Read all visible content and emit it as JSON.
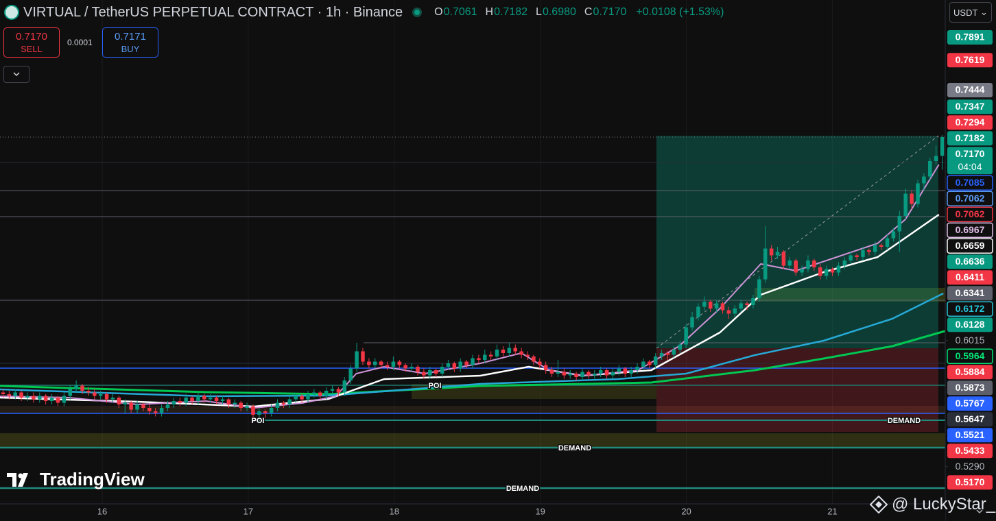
{
  "header": {
    "title": "VIRTUAL / TetherUS PERPETUAL CONTRACT · 1h · Binance",
    "ohlc_letters": [
      "O",
      "H",
      "L",
      "C"
    ],
    "ohlc_values": [
      "0.7061",
      "0.7182",
      "0.6980",
      "0.7170"
    ],
    "change": "+0.0108 (+1.53%)",
    "currency": "USDT"
  },
  "trade": {
    "sell_price": "0.7170",
    "sell": "SELL",
    "spread": "0.0001",
    "buy_price": "0.7171",
    "buy": "BUY"
  },
  "chart_data": {
    "type": "candlestick",
    "up_color": "#089981",
    "down_color": "#f23645",
    "xlim": [
      15.3,
      21.773
    ],
    "xticks": [
      16,
      17,
      18,
      19,
      20,
      21
    ],
    "ylim": [
      0.503,
      0.797
    ],
    "candles": [
      [
        0.568,
        0.57,
        0.565,
        0.567
      ],
      [
        0.567,
        0.569,
        0.564,
        0.566
      ],
      [
        0.566,
        0.57,
        0.564,
        0.568
      ],
      [
        0.568,
        0.569,
        0.563,
        0.565
      ],
      [
        0.565,
        0.568,
        0.563,
        0.566
      ],
      [
        0.566,
        0.568,
        0.562,
        0.564
      ],
      [
        0.564,
        0.568,
        0.562,
        0.566
      ],
      [
        0.566,
        0.567,
        0.561,
        0.563
      ],
      [
        0.563,
        0.567,
        0.561,
        0.565
      ],
      [
        0.565,
        0.566,
        0.56,
        0.562
      ],
      [
        0.562,
        0.568,
        0.56,
        0.566
      ],
      [
        0.566,
        0.572,
        0.564,
        0.57
      ],
      [
        0.57,
        0.575,
        0.568,
        0.572
      ],
      [
        0.572,
        0.573,
        0.567,
        0.569
      ],
      [
        0.569,
        0.571,
        0.566,
        0.568
      ],
      [
        0.568,
        0.57,
        0.564,
        0.566
      ],
      [
        0.566,
        0.569,
        0.564,
        0.567
      ],
      [
        0.567,
        0.568,
        0.562,
        0.564
      ],
      [
        0.564,
        0.567,
        0.562,
        0.565
      ],
      [
        0.565,
        0.566,
        0.559,
        0.561
      ],
      [
        0.561,
        0.564,
        0.556,
        0.562
      ],
      [
        0.562,
        0.563,
        0.556,
        0.558
      ],
      [
        0.558,
        0.563,
        0.556,
        0.561
      ],
      [
        0.561,
        0.562,
        0.557,
        0.559
      ],
      [
        0.559,
        0.561,
        0.555,
        0.557
      ],
      [
        0.557,
        0.559,
        0.554,
        0.556
      ],
      [
        0.556,
        0.561,
        0.554,
        0.559
      ],
      [
        0.559,
        0.563,
        0.557,
        0.561
      ],
      [
        0.561,
        0.565,
        0.559,
        0.563
      ],
      [
        0.563,
        0.565,
        0.56,
        0.562
      ],
      [
        0.562,
        0.567,
        0.56,
        0.565
      ],
      [
        0.565,
        0.566,
        0.561,
        0.563
      ],
      [
        0.563,
        0.568,
        0.561,
        0.566
      ],
      [
        0.566,
        0.567,
        0.562,
        0.564
      ],
      [
        0.564,
        0.567,
        0.562,
        0.565
      ],
      [
        0.565,
        0.566,
        0.561,
        0.563
      ],
      [
        0.563,
        0.566,
        0.561,
        0.564
      ],
      [
        0.564,
        0.565,
        0.559,
        0.561
      ],
      [
        0.561,
        0.564,
        0.559,
        0.562
      ],
      [
        0.562,
        0.563,
        0.557,
        0.559
      ],
      [
        0.559,
        0.562,
        0.557,
        0.56
      ],
      [
        0.56,
        0.561,
        0.552,
        0.555
      ],
      [
        0.555,
        0.559,
        0.553,
        0.557
      ],
      [
        0.557,
        0.558,
        0.553,
        0.556
      ],
      [
        0.556,
        0.561,
        0.554,
        0.559
      ],
      [
        0.559,
        0.564,
        0.557,
        0.562
      ],
      [
        0.562,
        0.563,
        0.559,
        0.561
      ],
      [
        0.561,
        0.566,
        0.559,
        0.564
      ],
      [
        0.564,
        0.568,
        0.562,
        0.566
      ],
      [
        0.566,
        0.567,
        0.562,
        0.564
      ],
      [
        0.564,
        0.569,
        0.562,
        0.567
      ],
      [
        0.567,
        0.57,
        0.565,
        0.568
      ],
      [
        0.568,
        0.569,
        0.564,
        0.566
      ],
      [
        0.566,
        0.571,
        0.564,
        0.569
      ],
      [
        0.569,
        0.572,
        0.567,
        0.57
      ],
      [
        0.57,
        0.571,
        0.566,
        0.568
      ],
      [
        0.568,
        0.577,
        0.566,
        0.575
      ],
      [
        0.575,
        0.584,
        0.573,
        0.582
      ],
      [
        0.582,
        0.597,
        0.58,
        0.592
      ],
      [
        0.592,
        0.594,
        0.584,
        0.586
      ],
      [
        0.586,
        0.588,
        0.582,
        0.584
      ],
      [
        0.584,
        0.588,
        0.582,
        0.586
      ],
      [
        0.586,
        0.587,
        0.582,
        0.584
      ],
      [
        0.584,
        0.586,
        0.581,
        0.583
      ],
      [
        0.583,
        0.589,
        0.581,
        0.586
      ],
      [
        0.586,
        0.587,
        0.582,
        0.584
      ],
      [
        0.584,
        0.585,
        0.58,
        0.582
      ],
      [
        0.582,
        0.585,
        0.58,
        0.583
      ],
      [
        0.583,
        0.584,
        0.578,
        0.58
      ],
      [
        0.58,
        0.582,
        0.576,
        0.578
      ],
      [
        0.578,
        0.583,
        0.576,
        0.581
      ],
      [
        0.581,
        0.582,
        0.577,
        0.579
      ],
      [
        0.579,
        0.585,
        0.577,
        0.583
      ],
      [
        0.583,
        0.587,
        0.581,
        0.585
      ],
      [
        0.585,
        0.586,
        0.58,
        0.582
      ],
      [
        0.582,
        0.588,
        0.58,
        0.586
      ],
      [
        0.586,
        0.587,
        0.582,
        0.584
      ],
      [
        0.584,
        0.59,
        0.582,
        0.588
      ],
      [
        0.588,
        0.59,
        0.585,
        0.587
      ],
      [
        0.587,
        0.593,
        0.585,
        0.59
      ],
      [
        0.59,
        0.592,
        0.587,
        0.589
      ],
      [
        0.589,
        0.596,
        0.587,
        0.593
      ],
      [
        0.593,
        0.595,
        0.589,
        0.591
      ],
      [
        0.591,
        0.597,
        0.589,
        0.594
      ],
      [
        0.594,
        0.596,
        0.59,
        0.592
      ],
      [
        0.592,
        0.594,
        0.588,
        0.59
      ],
      [
        0.59,
        0.592,
        0.587,
        0.589
      ],
      [
        0.589,
        0.59,
        0.584,
        0.586
      ],
      [
        0.586,
        0.588,
        0.582,
        0.584
      ],
      [
        0.584,
        0.586,
        0.579,
        0.581
      ],
      [
        0.581,
        0.583,
        0.577,
        0.579
      ],
      [
        0.579,
        0.587,
        0.577,
        0.58
      ],
      [
        0.58,
        0.582,
        0.576,
        0.578
      ],
      [
        0.578,
        0.581,
        0.576,
        0.579
      ],
      [
        0.579,
        0.58,
        0.575,
        0.577
      ],
      [
        0.577,
        0.582,
        0.575,
        0.58
      ],
      [
        0.58,
        0.581,
        0.576,
        0.578
      ],
      [
        0.578,
        0.581,
        0.576,
        0.579
      ],
      [
        0.579,
        0.583,
        0.577,
        0.581
      ],
      [
        0.581,
        0.582,
        0.576,
        0.578
      ],
      [
        0.578,
        0.582,
        0.576,
        0.58
      ],
      [
        0.58,
        0.584,
        0.578,
        0.582
      ],
      [
        0.582,
        0.583,
        0.577,
        0.579
      ],
      [
        0.579,
        0.583,
        0.577,
        0.581
      ],
      [
        0.581,
        0.585,
        0.579,
        0.583
      ],
      [
        0.583,
        0.588,
        0.581,
        0.586
      ],
      [
        0.586,
        0.587,
        0.582,
        0.584
      ],
      [
        0.584,
        0.591,
        0.582,
        0.589
      ],
      [
        0.589,
        0.593,
        0.587,
        0.591
      ],
      [
        0.591,
        0.592,
        0.587,
        0.59
      ],
      [
        0.59,
        0.595,
        0.588,
        0.593
      ],
      [
        0.593,
        0.598,
        0.591,
        0.596
      ],
      [
        0.596,
        0.608,
        0.594,
        0.606
      ],
      [
        0.606,
        0.615,
        0.604,
        0.612
      ],
      [
        0.612,
        0.62,
        0.61,
        0.618
      ],
      [
        0.618,
        0.624,
        0.616,
        0.621
      ],
      [
        0.621,
        0.622,
        0.615,
        0.617
      ],
      [
        0.617,
        0.622,
        0.615,
        0.62
      ],
      [
        0.62,
        0.621,
        0.614,
        0.616
      ],
      [
        0.616,
        0.618,
        0.611,
        0.614
      ],
      [
        0.614,
        0.619,
        0.612,
        0.617
      ],
      [
        0.617,
        0.622,
        0.615,
        0.62
      ],
      [
        0.62,
        0.621,
        0.616,
        0.619
      ],
      [
        0.619,
        0.625,
        0.617,
        0.623
      ],
      [
        0.623,
        0.636,
        0.621,
        0.634
      ],
      [
        0.634,
        0.665,
        0.632,
        0.652
      ],
      [
        0.652,
        0.654,
        0.645,
        0.648
      ],
      [
        0.648,
        0.653,
        0.646,
        0.65
      ],
      [
        0.65,
        0.651,
        0.64,
        0.642
      ],
      [
        0.642,
        0.647,
        0.64,
        0.645
      ],
      [
        0.645,
        0.646,
        0.636,
        0.638
      ],
      [
        0.638,
        0.642,
        0.636,
        0.64
      ],
      [
        0.64,
        0.648,
        0.638,
        0.645
      ],
      [
        0.645,
        0.646,
        0.639,
        0.641
      ],
      [
        0.641,
        0.643,
        0.634,
        0.636
      ],
      [
        0.636,
        0.642,
        0.634,
        0.64
      ],
      [
        0.64,
        0.641,
        0.636,
        0.638
      ],
      [
        0.638,
        0.644,
        0.636,
        0.642
      ],
      [
        0.642,
        0.647,
        0.64,
        0.645
      ],
      [
        0.645,
        0.65,
        0.643,
        0.648
      ],
      [
        0.648,
        0.649,
        0.645,
        0.647
      ],
      [
        0.647,
        0.653,
        0.645,
        0.651
      ],
      [
        0.651,
        0.652,
        0.648,
        0.65
      ],
      [
        0.65,
        0.656,
        0.648,
        0.654
      ],
      [
        0.654,
        0.655,
        0.651,
        0.653
      ],
      [
        0.653,
        0.66,
        0.651,
        0.658
      ],
      [
        0.658,
        0.664,
        0.656,
        0.662
      ],
      [
        0.662,
        0.674,
        0.65,
        0.671
      ],
      [
        0.671,
        0.687,
        0.669,
        0.684
      ],
      [
        0.684,
        0.686,
        0.675,
        0.678
      ],
      [
        0.678,
        0.692,
        0.676,
        0.69
      ],
      [
        0.69,
        0.696,
        0.686,
        0.694
      ],
      [
        0.694,
        0.705,
        0.692,
        0.703
      ],
      [
        0.703,
        0.712,
        0.701,
        0.706
      ],
      [
        0.7061,
        0.7182,
        0.698,
        0.717
      ]
    ],
    "ma_lines": [
      {
        "color": "#00c853",
        "width": 3,
        "x": [
          15.3,
          16.71,
          17.55,
          18.59,
          19.76,
          20.47,
          20.94,
          21.41,
          21.77
        ],
        "values": [
          0.5718,
          0.5682,
          0.567,
          0.5718,
          0.5738,
          0.581,
          0.5878,
          0.595,
          0.6038
        ]
      },
      {
        "color": "#26a9d6",
        "width": 2.5,
        "x": [
          15.3,
          16.71,
          17.55,
          18.59,
          19.53,
          20.0,
          20.47,
          20.94,
          21.41,
          21.76
        ],
        "values": [
          0.5698,
          0.5658,
          0.5662,
          0.573,
          0.5758,
          0.579,
          0.5898,
          0.5982,
          0.611,
          0.6258
        ]
      },
      {
        "color": "#ffffff",
        "width": 2.5,
        "x": [
          15.3,
          16.24,
          17.04,
          17.55,
          17.93,
          18.59,
          18.92,
          19.29,
          19.76,
          20.23,
          20.51,
          20.94,
          21.31,
          21.73
        ],
        "values": [
          0.565,
          0.5626,
          0.5598,
          0.5642,
          0.5758,
          0.5778,
          0.583,
          0.5778,
          0.581,
          0.603,
          0.625,
          0.6382,
          0.647,
          0.6718
        ]
      },
      {
        "color": "#ce93d8",
        "width": 2,
        "x": [
          15.3,
          15.77,
          16.24,
          16.71,
          17.04,
          17.37,
          17.6,
          17.74,
          17.93,
          18.21,
          18.59,
          18.87,
          19.06,
          19.29,
          19.67,
          19.95,
          20.23,
          20.51,
          20.75,
          21.03,
          21.31,
          21.5,
          21.73
        ],
        "values": [
          0.5658,
          0.565,
          0.561,
          0.563,
          0.559,
          0.5618,
          0.5658,
          0.579,
          0.583,
          0.579,
          0.585,
          0.591,
          0.581,
          0.5778,
          0.581,
          0.595,
          0.617,
          0.643,
          0.639,
          0.647,
          0.655,
          0.669,
          0.701
        ]
      }
    ],
    "price_badges": [
      {
        "value": 0.7891,
        "style": "solid",
        "color": "#089981"
      },
      {
        "value": 0.7619,
        "style": "solid",
        "color": "#f23645"
      },
      {
        "value": 0.7444,
        "style": "solid",
        "color": "#787b86"
      },
      {
        "value": 0.7347,
        "style": "solid",
        "color": "#089981"
      },
      {
        "value": 0.7294,
        "style": "solid",
        "color": "#f23645"
      },
      {
        "value": 0.7182,
        "style": "solid",
        "color": "#089981"
      },
      {
        "value": {
          "value": 0.717,
          "label": "0.7170"
        },
        "style": "solid",
        "color": "#089981",
        "countdown": "04:04"
      },
      {
        "value": 0.7085,
        "style": "outline",
        "color": "#2962ff"
      },
      {
        "value": 0.7062,
        "style": "outline",
        "color": "#5b9cf6"
      },
      {
        "value": 0.7062,
        "style": "outline",
        "color": "#f23645"
      },
      {
        "value": 0.6967,
        "style": "outline",
        "color": "#e1bee7"
      },
      {
        "value": 0.6659,
        "style": "outline",
        "color": "#ffffff"
      },
      {
        "value": 0.6636,
        "style": "solid",
        "color": "#089981"
      },
      {
        "value": 0.6411,
        "style": "solid",
        "color": "#f23645"
      },
      {
        "value": 0.6341,
        "style": "solid",
        "color": "#5d606b"
      },
      {
        "value": 0.6172,
        "style": "outline",
        "color": "#26c6da"
      },
      {
        "value": 0.6128,
        "style": "solid",
        "color": "#089981"
      },
      {
        "value": 0.6015,
        "style": "plain",
        "color": "#b2b5be"
      },
      {
        "value": 0.5964,
        "style": "outline",
        "color": "#00e676"
      },
      {
        "value": 0.5884,
        "style": "solid",
        "color": "#f23645"
      },
      {
        "value": 0.5873,
        "style": "solid",
        "color": "#5d606b"
      },
      {
        "value": 0.5767,
        "style": "solid",
        "color": "#2962ff"
      },
      {
        "value": 0.5647,
        "style": "solid",
        "color": "#2a2e39"
      },
      {
        "value": 0.5521,
        "style": "solid",
        "color": "#2962ff"
      },
      {
        "value": 0.5433,
        "style": "solid",
        "color": "#f23645"
      },
      {
        "value": {
          "value": 0.529,
          "label": "0.5290"
        },
        "style": "plain",
        "color": "#b2b5be"
      },
      {
        "value": {
          "value": 0.517,
          "label": "0.5170"
        },
        "style": "solid",
        "color": "#f23645"
      }
    ],
    "annotations": [
      "POI",
      "POI",
      "DEMAND",
      "DEMAND",
      "DEMAND"
    ]
  },
  "watermarks": {
    "logo": "TradingView",
    "credit": "@ LuckyStar_"
  }
}
